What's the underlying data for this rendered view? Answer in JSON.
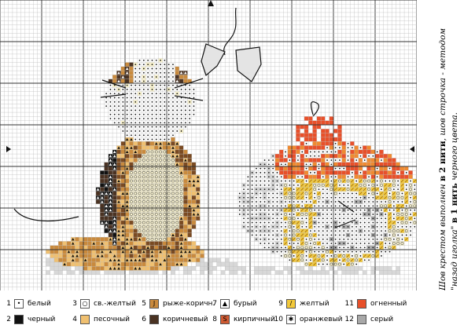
{
  "note": {
    "line1_a": "Шов крестом выполнен ",
    "line1_b": "в 2 нити",
    "line1_c": ", шов строчка - методом",
    "line2_a": "\"назад иголка\" ",
    "line2_b": "в 1 нить",
    "line2_c": " черного цвета."
  },
  "legend": [
    {
      "num": "1",
      "label": "белый",
      "color": "#ffffff",
      "symbol": "•"
    },
    {
      "num": "2",
      "label": "черный",
      "color": "#111111",
      "symbol": ""
    },
    {
      "num": "3",
      "label": "св.-желтый",
      "color": "#ffffff",
      "symbol": "○"
    },
    {
      "num": "4",
      "label": "песочный",
      "color": "#f0c070",
      "symbol": ""
    },
    {
      "num": "5",
      "label": "рыже-коричн.",
      "color": "#c98a3d",
      "symbol": "J"
    },
    {
      "num": "6",
      "label": "коричневый",
      "color": "#4a3222",
      "symbol": ""
    },
    {
      "num": "7",
      "label": "бурый",
      "color": "#ffffff",
      "symbol": "▲"
    },
    {
      "num": "8",
      "label": "кирпичный",
      "color": "#d05a32",
      "symbol": "S"
    },
    {
      "num": "9",
      "label": "желтый",
      "color": "#f3c93a",
      "symbol": "/"
    },
    {
      "num": "10",
      "label": "оранжевый",
      "color": "#ffffff",
      "symbol": "✱"
    },
    {
      "num": "11",
      "label": "огненный",
      "color": "#e8502a",
      "symbol": ""
    },
    {
      "num": "12",
      "label": "серый",
      "color": "#a8a8a8",
      "symbol": ""
    }
  ]
}
